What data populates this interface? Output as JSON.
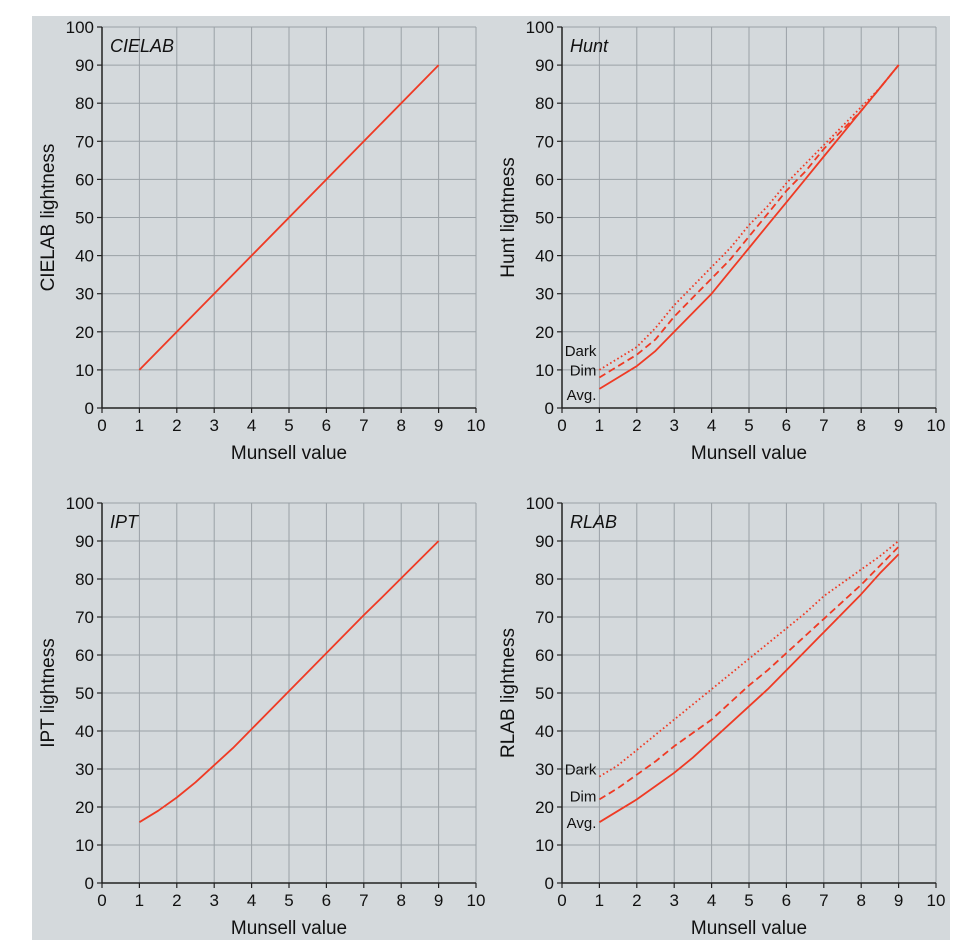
{
  "figure": {
    "background": "#d4d9dc",
    "grid_color": "#9aa1a6",
    "line_color": "#ef3a24"
  },
  "chart_data": [
    {
      "id": "cielab",
      "type": "line",
      "title": "CIELAB",
      "xlabel": "Munsell value",
      "ylabel": "CIELAB lightness",
      "xlim": [
        0,
        10
      ],
      "ylim": [
        0,
        100
      ],
      "xticks": [
        "0",
        "1",
        "2",
        "3",
        "4",
        "5",
        "6",
        "7",
        "8",
        "9",
        "10"
      ],
      "yticks": [
        "0",
        "10",
        "20",
        "30",
        "40",
        "50",
        "60",
        "70",
        "80",
        "90",
        "100"
      ],
      "grid": true,
      "series": [
        {
          "style": "solid",
          "x": [
            1,
            9
          ],
          "y": [
            10,
            90
          ]
        }
      ]
    },
    {
      "id": "hunt",
      "type": "line",
      "title": "Hunt",
      "xlabel": "Munsell value",
      "ylabel": "Hunt lightness",
      "xlim": [
        0,
        10
      ],
      "ylim": [
        0,
        100
      ],
      "xticks": [
        "0",
        "1",
        "2",
        "3",
        "4",
        "5",
        "6",
        "7",
        "8",
        "9",
        "10"
      ],
      "yticks": [
        "0",
        "10",
        "20",
        "30",
        "40",
        "50",
        "60",
        "70",
        "80",
        "90",
        "100"
      ],
      "grid": true,
      "series": [
        {
          "name": "Dark",
          "style": "dotted",
          "x": [
            1,
            1.5,
            2,
            2.5,
            3,
            3.5,
            4,
            4.5,
            5,
            5.5,
            6,
            6.5,
            7,
            7.5,
            8,
            8.5,
            9
          ],
          "y": [
            10,
            13,
            16,
            21,
            27,
            32,
            37,
            42,
            48,
            53,
            59,
            64,
            69,
            74,
            79,
            84,
            90
          ]
        },
        {
          "name": "Dim",
          "style": "dashed",
          "x": [
            1,
            1.5,
            2,
            2.5,
            3,
            3.5,
            4,
            4.5,
            5,
            5.5,
            6,
            6.5,
            7,
            7.5,
            8,
            8.5,
            9
          ],
          "y": [
            8,
            11,
            14,
            18,
            24,
            29,
            34,
            39,
            45,
            51,
            57,
            62,
            68,
            73,
            78,
            84,
            90
          ]
        },
        {
          "name": "Avg.",
          "style": "solid",
          "x": [
            1,
            1.5,
            2,
            2.5,
            3,
            3.5,
            4,
            4.5,
            5,
            5.5,
            6,
            6.5,
            7,
            7.5,
            8,
            8.5,
            9
          ],
          "y": [
            5,
            8,
            11,
            15,
            20,
            25,
            30,
            36,
            42,
            48,
            54,
            60,
            66,
            72,
            78,
            84,
            90
          ]
        }
      ]
    },
    {
      "id": "ipt",
      "type": "line",
      "title": "IPT",
      "xlabel": "Munsell value",
      "ylabel": "IPT lightness",
      "xlim": [
        0,
        10
      ],
      "ylim": [
        0,
        100
      ],
      "xticks": [
        "0",
        "1",
        "2",
        "3",
        "4",
        "5",
        "6",
        "7",
        "8",
        "9",
        "10"
      ],
      "yticks": [
        "0",
        "10",
        "20",
        "30",
        "40",
        "50",
        "60",
        "70",
        "80",
        "90",
        "100"
      ],
      "grid": true,
      "series": [
        {
          "style": "solid",
          "x": [
            1,
            1.5,
            2,
            2.5,
            3,
            3.5,
            4,
            4.5,
            5,
            5.5,
            6,
            6.5,
            7,
            7.5,
            8,
            8.5,
            9
          ],
          "y": [
            16,
            19,
            22.5,
            26.5,
            31,
            35.5,
            40.5,
            45.5,
            50.5,
            55.5,
            60.5,
            65.5,
            70.5,
            75.3,
            80.2,
            85.1,
            90
          ]
        }
      ]
    },
    {
      "id": "rlab",
      "type": "line",
      "title": "RLAB",
      "xlabel": "Munsell value",
      "ylabel": "RLAB lightness",
      "xlim": [
        0,
        10
      ],
      "ylim": [
        0,
        100
      ],
      "xticks": [
        "0",
        "1",
        "2",
        "3",
        "4",
        "5",
        "6",
        "7",
        "8",
        "9",
        "10"
      ],
      "yticks": [
        "0",
        "10",
        "20",
        "30",
        "40",
        "50",
        "60",
        "70",
        "80",
        "90",
        "100"
      ],
      "grid": true,
      "series": [
        {
          "name": "Dark",
          "style": "dotted",
          "x": [
            1,
            1.5,
            2,
            2.5,
            3,
            3.5,
            4,
            4.5,
            5,
            5.5,
            6,
            6.5,
            7,
            7.5,
            8,
            8.5,
            9
          ],
          "y": [
            28,
            31,
            35,
            39,
            43,
            47,
            51,
            55,
            59,
            63,
            67,
            71,
            75.5,
            79,
            82.5,
            86,
            90
          ]
        },
        {
          "name": "Dim",
          "style": "dashed",
          "x": [
            1,
            1.5,
            2,
            2.5,
            3,
            3.5,
            4,
            4.5,
            5,
            5.5,
            6,
            6.5,
            7,
            7.5,
            8,
            8.5,
            9
          ],
          "y": [
            22,
            25,
            28.5,
            32,
            36,
            39.5,
            43,
            47.5,
            52,
            56,
            60.5,
            65,
            69.5,
            74,
            78.5,
            83.5,
            88.5
          ]
        },
        {
          "name": "Avg.",
          "style": "solid",
          "x": [
            1,
            1.5,
            2,
            2.5,
            3,
            3.5,
            4,
            4.5,
            5,
            5.5,
            6,
            6.5,
            7,
            7.5,
            8,
            8.5,
            9
          ],
          "y": [
            16,
            19,
            22,
            25.5,
            29,
            33,
            37.5,
            42,
            46.5,
            51,
            56,
            61,
            66,
            71,
            76,
            81.5,
            86.5
          ]
        }
      ]
    }
  ]
}
